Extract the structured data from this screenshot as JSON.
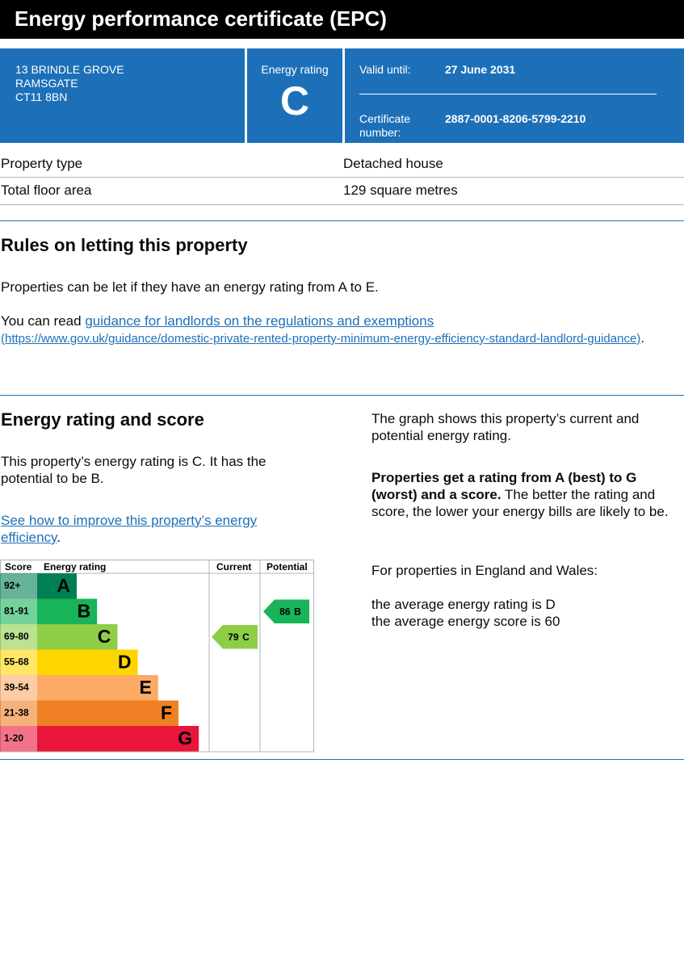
{
  "header": {
    "title": "Energy performance certificate (EPC)"
  },
  "summary": {
    "address": [
      "13 BRINDLE GROVE",
      "RAMSGATE",
      "CT11 8BN"
    ],
    "rating_label": "Energy rating",
    "rating": "C",
    "valid_label": "Valid until:",
    "valid_date": "27 June 2031",
    "certificate_label": "Certificate number:",
    "certificate_number": "2887-0001-8206-5799-2210"
  },
  "property": {
    "rows": [
      [
        "Property type",
        "Detached house"
      ],
      [
        "Total floor area",
        "129 square metres"
      ]
    ]
  },
  "letting": {
    "heading": "Rules on letting this property",
    "paragraph": "Properties can be let if they have an energy rating from A to E.",
    "read_prefix": "You can read",
    "link_text": "guidance for landlords on the regulations and exemptions",
    "link_url": "(https://www.gov.uk/guidance/domestic-private-rented-property-minimum-energy-efficiency-standard-landlord-guidance)",
    "read_suffix": "."
  },
  "energy": {
    "heading": "Energy rating and score",
    "paragraph": "This property’s energy rating is C. It has the potential to be B.",
    "link_text": "See how to improve this property’s energy efficiency",
    "link_suffix": ".",
    "graph_intro": "The graph shows this property’s current and potential energy rating.",
    "rating_bold": "Properties get a rating from A (best) to G (worst) and a score.",
    "rating_rest": "The better the rating and score, the lower your energy bills are likely to be.",
    "region": "For properties in England and Wales:",
    "average_rating": "the average energy rating is D",
    "average_score": "the average energy score is 60",
    "graph": {
      "headers": [
        "Score",
        "Energy rating",
        "Current",
        "Potential"
      ],
      "bands": [
        {
          "score": "92+",
          "letter": "A",
          "color": "#008054"
        },
        {
          "score": "81-91",
          "letter": "B",
          "color": "#19b459"
        },
        {
          "score": "69-80",
          "letter": "C",
          "color": "#8dce46"
        },
        {
          "score": "55-68",
          "letter": "D",
          "color": "#ffd500"
        },
        {
          "score": "39-54",
          "letter": "E",
          "color": "#fcaa65"
        },
        {
          "score": "21-38",
          "letter": "F",
          "color": "#ef8023"
        },
        {
          "score": "1-20",
          "letter": "G",
          "color": "#e9153b"
        }
      ],
      "current": {
        "score": 79,
        "letter": "C"
      },
      "potential": {
        "score": 86,
        "letter": "B"
      }
    }
  }
}
